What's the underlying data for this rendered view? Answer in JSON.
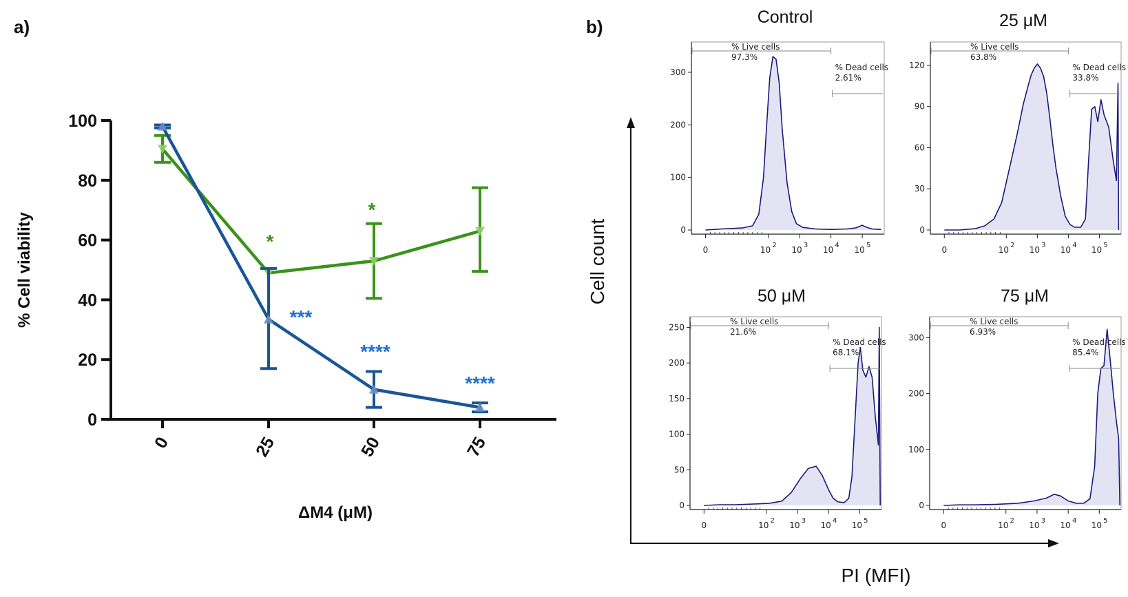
{
  "panel_a_label": "a)",
  "panel_b_label": "b)",
  "chart_data": [
    {
      "type": "line",
      "panel": "a",
      "xlabel": "ΔM4 (μM)",
      "ylabel": "% Cell viability",
      "categories": [
        "0",
        "25",
        "50",
        "75"
      ],
      "ylim": [
        0,
        100
      ],
      "yticks": [
        "0",
        "20",
        "40",
        "60",
        "80",
        "100"
      ],
      "series": [
        {
          "name": "green series",
          "color": "#3a9318",
          "values": [
            90.5,
            49,
            53,
            63
          ],
          "err_low": [
            86,
            49,
            40.5,
            49.5
          ],
          "err_high": [
            95,
            49,
            65.5,
            77.5
          ],
          "significance": [
            "",
            "*",
            "*",
            ""
          ]
        },
        {
          "name": "blue series",
          "color": "#1a5596",
          "values": [
            98,
            33.5,
            10,
            4
          ],
          "err_low": [
            97.5,
            17,
            4,
            2.5
          ],
          "err_high": [
            98.5,
            50.5,
            16,
            5.5
          ],
          "significance": [
            "",
            "***",
            "****",
            "****"
          ]
        }
      ]
    },
    {
      "type": "area",
      "panel": "b",
      "shared_xlabel": "PI  (MFI)",
      "shared_ylabel": "Cell count",
      "x_tick_labels": [
        "0",
        "10",
        "10",
        "10",
        "10"
      ],
      "x_tick_exponents": [
        "",
        "2",
        "3",
        "4",
        "5"
      ],
      "live_gate_label": "% Live cells",
      "dead_gate_label": "% Dead cells",
      "histograms": [
        {
          "title": "Control",
          "yticks": [
            "0",
            "100",
            "200",
            "300"
          ],
          "ymax": 355,
          "live_pct": "97.3%",
          "dead_pct": "2.61%",
          "profile": [
            [
              0.0,
              0
            ],
            [
              0.3,
              1
            ],
            [
              0.5,
              2
            ],
            [
              0.9,
              3
            ],
            [
              1.2,
              4
            ],
            [
              1.5,
              8
            ],
            [
              1.7,
              30
            ],
            [
              1.85,
              100
            ],
            [
              1.95,
              200
            ],
            [
              2.05,
              290
            ],
            [
              2.15,
              330
            ],
            [
              2.25,
              325
            ],
            [
              2.35,
              280
            ],
            [
              2.45,
              190
            ],
            [
              2.6,
              90
            ],
            [
              2.75,
              35
            ],
            [
              2.9,
              12
            ],
            [
              3.1,
              5
            ],
            [
              3.5,
              2
            ],
            [
              4.0,
              1
            ],
            [
              4.5,
              2
            ],
            [
              4.8,
              4
            ],
            [
              5.0,
              9
            ],
            [
              5.1,
              6
            ],
            [
              5.3,
              2
            ],
            [
              5.6,
              1
            ]
          ]
        },
        {
          "title": "25 μM",
          "yticks": [
            "0",
            "30",
            "60",
            "90",
            "120"
          ],
          "ymax": 136,
          "live_pct": "63.8%",
          "dead_pct": "33.8%",
          "profile": [
            [
              0.0,
              0
            ],
            [
              0.5,
              0
            ],
            [
              1.0,
              1
            ],
            [
              1.3,
              3
            ],
            [
              1.6,
              8
            ],
            [
              1.85,
              20
            ],
            [
              2.1,
              45
            ],
            [
              2.35,
              70
            ],
            [
              2.55,
              92
            ],
            [
              2.7,
              105
            ],
            [
              2.8,
              113
            ],
            [
              2.9,
              118
            ],
            [
              3.0,
              121
            ],
            [
              3.1,
              118
            ],
            [
              3.2,
              112
            ],
            [
              3.3,
              100
            ],
            [
              3.4,
              82
            ],
            [
              3.5,
              62
            ],
            [
              3.6,
              45
            ],
            [
              3.75,
              25
            ],
            [
              3.9,
              10
            ],
            [
              4.05,
              4
            ],
            [
              4.2,
              2
            ],
            [
              4.4,
              2
            ],
            [
              4.55,
              8
            ],
            [
              4.65,
              50
            ],
            [
              4.75,
              88
            ],
            [
              4.85,
              90
            ],
            [
              4.95,
              79
            ],
            [
              5.05,
              95
            ],
            [
              5.15,
              84
            ],
            [
              5.3,
              75
            ],
            [
              5.45,
              50
            ],
            [
              5.55,
              36
            ],
            [
              5.6,
              107
            ],
            [
              5.62,
              0
            ]
          ]
        },
        {
          "title": "50 μM",
          "yticks": [
            "0",
            "50",
            "100",
            "150",
            "200",
            "250"
          ],
          "ymax": 263,
          "live_pct": "21.6%",
          "dead_pct": "68.1%",
          "profile": [
            [
              0.0,
              0
            ],
            [
              0.5,
              1
            ],
            [
              1.0,
              1
            ],
            [
              1.6,
              2
            ],
            [
              2.1,
              3
            ],
            [
              2.5,
              6
            ],
            [
              2.8,
              18
            ],
            [
              3.1,
              38
            ],
            [
              3.35,
              52
            ],
            [
              3.6,
              55
            ],
            [
              3.8,
              42
            ],
            [
              4.0,
              22
            ],
            [
              4.15,
              10
            ],
            [
              4.3,
              5
            ],
            [
              4.5,
              4
            ],
            [
              4.65,
              10
            ],
            [
              4.75,
              40
            ],
            [
              4.85,
              120
            ],
            [
              4.95,
              200
            ],
            [
              5.02,
              222
            ],
            [
              5.1,
              190
            ],
            [
              5.2,
              180
            ],
            [
              5.3,
              195
            ],
            [
              5.4,
              180
            ],
            [
              5.5,
              125
            ],
            [
              5.6,
              85
            ],
            [
              5.63,
              250
            ],
            [
              5.66,
              0
            ]
          ]
        },
        {
          "title": "75 μM",
          "yticks": [
            "0",
            "100",
            "200",
            "300"
          ],
          "ymax": 335,
          "live_pct": "6.93%",
          "dead_pct": "85.4%",
          "profile": [
            [
              0.0,
              0
            ],
            [
              0.5,
              1
            ],
            [
              1.0,
              1
            ],
            [
              1.7,
              2
            ],
            [
              2.4,
              4
            ],
            [
              2.9,
              8
            ],
            [
              3.3,
              13
            ],
            [
              3.55,
              20
            ],
            [
              3.75,
              17
            ],
            [
              4.0,
              8
            ],
            [
              4.25,
              4
            ],
            [
              4.5,
              4
            ],
            [
              4.7,
              12
            ],
            [
              4.85,
              70
            ],
            [
              4.95,
              200
            ],
            [
              5.05,
              245
            ],
            [
              5.15,
              250
            ],
            [
              5.25,
              315
            ],
            [
              5.35,
              260
            ],
            [
              5.45,
              200
            ],
            [
              5.55,
              150
            ],
            [
              5.62,
              120
            ],
            [
              5.66,
              0
            ]
          ]
        }
      ]
    }
  ]
}
